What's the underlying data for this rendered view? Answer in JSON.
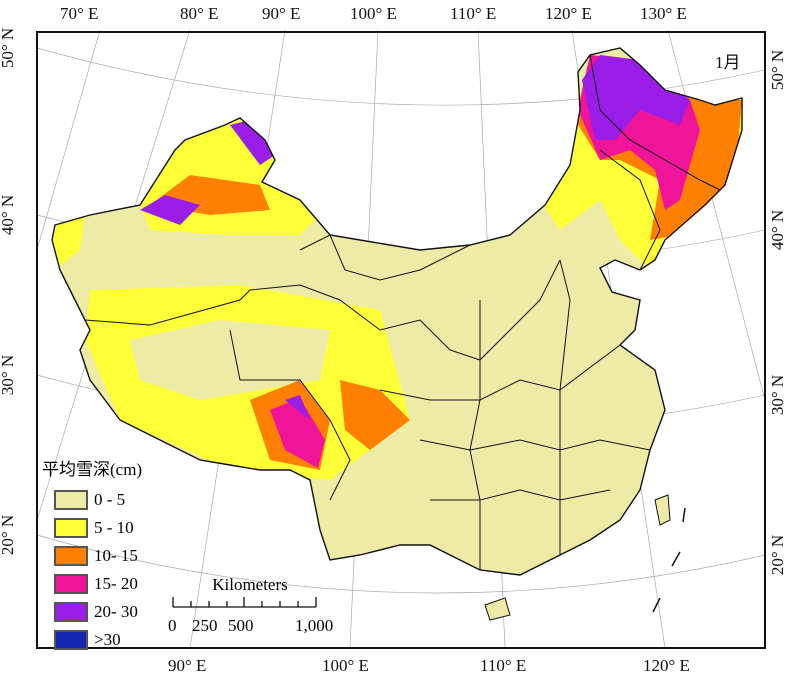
{
  "title": "1月",
  "axes": {
    "top": [
      "70° E",
      "80° E",
      "90° E",
      "100° E",
      "110° E",
      "120° E",
      "130° E"
    ],
    "bottom": [
      "90° E",
      "100° E",
      "110° E",
      "120° E"
    ],
    "left": [
      "50° N",
      "40° N",
      "30° N",
      "20° N"
    ],
    "right": [
      "50° N",
      "40° N",
      "30° N",
      "20° N"
    ]
  },
  "legend": {
    "title": "平均雪深(cm)",
    "items": [
      {
        "label": "0 - 5",
        "color": "#eeeba6"
      },
      {
        "label": "5 - 10",
        "color": "#ffff38"
      },
      {
        "label": "10- 15",
        "color": "#ff8000"
      },
      {
        "label": "15- 20",
        "color": "#f0149b"
      },
      {
        "label": "20- 30",
        "color": "#9b1ee8"
      },
      {
        "label": ">30",
        "color": "#1428b4"
      }
    ]
  },
  "scale_bar": {
    "unit": "Kilometers",
    "ticks": [
      "0",
      "250",
      "500",
      "1,000"
    ]
  }
}
